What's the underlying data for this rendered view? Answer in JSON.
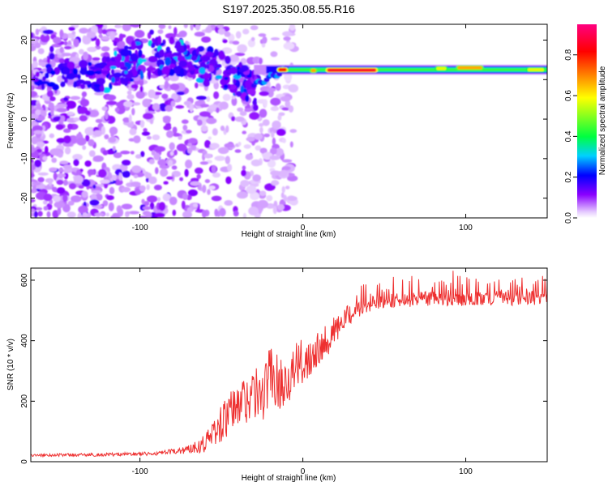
{
  "figure_title": "S197.2025.350.08.55.R16",
  "chart_data": [
    {
      "type": "heatmap",
      "title": "S197.2025.350.08.55.R16",
      "xlabel": "Height of straight line (km)",
      "ylabel": "Frequency (Hz)",
      "xlim": [
        -167,
        150
      ],
      "ylim": [
        -25,
        24
      ],
      "xticks": [
        -100,
        0,
        100
      ],
      "xtick_labels": [
        "-100",
        "0",
        "100"
      ],
      "yticks": [
        -20,
        -10,
        0,
        10,
        20
      ],
      "ytick_labels": [
        "-20",
        "-10",
        "0",
        "10",
        "20"
      ],
      "colorbar": {
        "label": "Normalized spectral amplitude",
        "range": [
          0,
          0.95
        ],
        "ticks": [
          0,
          0.2,
          0.4,
          0.6,
          0.8
        ],
        "tick_labels": [
          "0.0",
          "0.2",
          "0.4",
          "0.6",
          "0.8"
        ],
        "colormap": [
          "#ffffff",
          "#8a00ff",
          "#0000ff",
          "#00d0ff",
          "#00ff40",
          "#ffff00",
          "#ff8000",
          "#ff0000",
          "#ff0080"
        ]
      },
      "features": [
        {
          "name": "noise region",
          "x_range": [
            -167,
            -30
          ],
          "freq_range": [
            -25,
            24
          ],
          "amplitude": 0.1
        },
        {
          "name": "transition blobs",
          "x_range": [
            -130,
            -28
          ],
          "freq_range": [
            3,
            20
          ],
          "amplitude": 0.2
        },
        {
          "name": "stable tone",
          "x_range": [
            -30,
            150
          ],
          "frequency": 12.5,
          "amplitude": 0.6
        }
      ],
      "bright_segments": [
        {
          "x_start": -15,
          "x_end": -10,
          "freq": 12.5,
          "amp": 0.85
        },
        {
          "x_start": 5,
          "x_end": 8,
          "freq": 12.3,
          "amp": 0.7
        },
        {
          "x_start": 15,
          "x_end": 45,
          "freq": 12.4,
          "amp": 0.9
        },
        {
          "x_start": 82,
          "x_end": 88,
          "freq": 12.8,
          "amp": 0.6
        },
        {
          "x_start": 95,
          "x_end": 110,
          "freq": 13,
          "amp": 0.7
        },
        {
          "x_start": 138,
          "x_end": 148,
          "freq": 12.5,
          "amp": 0.6
        }
      ]
    },
    {
      "type": "line",
      "xlabel": "Height of straight line (km)",
      "ylabel": "SNR (10 * v/v)",
      "xlim": [
        -167,
        150
      ],
      "ylim": [
        0,
        640
      ],
      "xticks": [
        -100,
        0,
        100
      ],
      "xtick_labels": [
        "-100",
        "0",
        "100"
      ],
      "yticks": [
        0,
        200,
        400,
        600
      ],
      "ytick_labels": [
        "0",
        "200",
        "400",
        "600"
      ],
      "series": [
        {
          "name": "SNR",
          "color": "#ee3030",
          "x": [
            -167,
            -150,
            -130,
            -110,
            -90,
            -80,
            -70,
            -60,
            -55,
            -50,
            -45,
            -40,
            -35,
            -30,
            -25,
            -20,
            -15,
            -10,
            -5,
            0,
            5,
            10,
            15,
            20,
            25,
            30,
            40,
            50,
            60,
            70,
            80,
            90,
            100,
            110,
            120,
            130,
            140,
            150
          ],
          "y": [
            20,
            22,
            22,
            24,
            26,
            32,
            40,
            60,
            90,
            120,
            150,
            175,
            200,
            220,
            200,
            290,
            250,
            260,
            300,
            320,
            350,
            380,
            400,
            430,
            460,
            490,
            525,
            535,
            540,
            540,
            545,
            540,
            545,
            540,
            545,
            545,
            545,
            545
          ],
          "noise_amplitude": [
            6,
            6,
            7,
            7,
            8,
            12,
            18,
            40,
            60,
            80,
            90,
            100,
            110,
            110,
            110,
            120,
            110,
            100,
            100,
            100,
            90,
            80,
            70,
            60,
            50,
            45,
            35,
            35,
            35,
            35,
            35,
            35,
            35,
            35,
            35,
            35,
            35,
            35
          ]
        }
      ]
    }
  ]
}
